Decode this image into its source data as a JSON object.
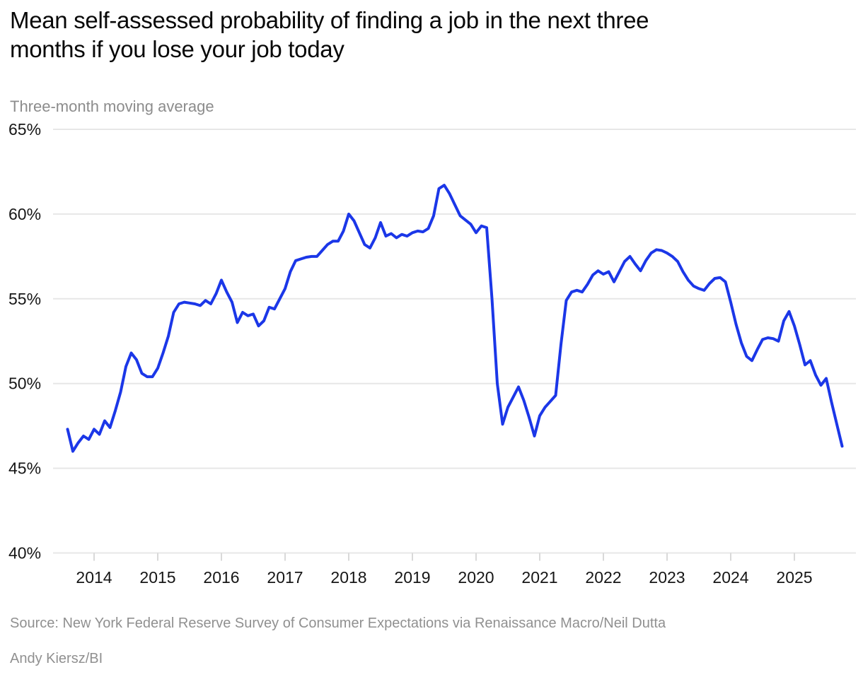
{
  "header": {
    "title_lines": [
      "Mean self-assessed probability of finding a job in the next three",
      "months if you lose your job today"
    ],
    "subtitle": "Three-month moving average"
  },
  "footer": {
    "source": "Source: New York Federal Reserve Survey of Consumer Expectations via Renaissance Macro/Neil Dutta",
    "byline": "Andy Kiersz/BI"
  },
  "colors": {
    "line": "#1b37e8",
    "gridline": "#e7e7e7",
    "axis_text": "#161616",
    "muted_text": "#909090"
  },
  "chart_data": {
    "type": "line",
    "title": "Mean self-assessed probability of finding a job in the next three months if you lose your job today",
    "subtitle": "Three-month moving average",
    "unit": "percent",
    "frequency": "monthly",
    "x_start": "2013-08",
    "x_end": "2025-10",
    "ylim": [
      40,
      65
    ],
    "ytick_labels": [
      "40%",
      "45%",
      "50%",
      "55%",
      "60%",
      "65%"
    ],
    "yticks": [
      40,
      45,
      50,
      55,
      60,
      65
    ],
    "xtick_years": [
      2014,
      2015,
      2016,
      2017,
      2018,
      2019,
      2020,
      2021,
      2022,
      2023,
      2024,
      2025
    ],
    "grid": "horizontal-only",
    "legend": "none",
    "series": [
      {
        "name": "Mean probability of finding a job (3-month moving average)",
        "values": [
          47.3,
          46.0,
          46.5,
          46.9,
          46.7,
          47.3,
          47.0,
          47.8,
          47.4,
          48.4,
          49.5,
          51.0,
          51.8,
          51.4,
          50.6,
          50.4,
          50.4,
          50.9,
          51.8,
          52.8,
          54.2,
          54.7,
          54.8,
          54.75,
          54.7,
          54.6,
          54.9,
          54.7,
          55.3,
          56.1,
          55.4,
          54.8,
          53.6,
          54.2,
          54.0,
          54.1,
          53.4,
          53.7,
          54.5,
          54.4,
          55.0,
          55.6,
          56.6,
          57.25,
          57.35,
          57.45,
          57.5,
          57.5,
          57.85,
          58.2,
          58.4,
          58.4,
          59.0,
          60.0,
          59.6,
          58.9,
          58.2,
          58.0,
          58.6,
          59.5,
          58.7,
          58.85,
          58.6,
          58.8,
          58.7,
          58.9,
          59.0,
          58.95,
          59.15,
          59.9,
          61.5,
          61.7,
          61.2,
          60.55,
          59.9,
          59.65,
          59.4,
          58.9,
          59.3,
          59.2,
          55.0,
          50.0,
          47.6,
          48.6,
          49.2,
          49.8,
          49.0,
          48.0,
          46.9,
          48.1,
          48.6,
          48.95,
          49.3,
          52.3,
          54.9,
          55.4,
          55.5,
          55.4,
          55.85,
          56.4,
          56.65,
          56.45,
          56.6,
          56.0,
          56.6,
          57.2,
          57.5,
          57.05,
          56.65,
          57.25,
          57.7,
          57.9,
          57.85,
          57.7,
          57.5,
          57.2,
          56.6,
          56.1,
          55.75,
          55.6,
          55.5,
          55.9,
          56.2,
          56.25,
          56.0,
          54.8,
          53.5,
          52.4,
          51.6,
          51.35,
          52.0,
          52.6,
          52.7,
          52.65,
          52.5,
          53.7,
          54.25,
          53.4,
          52.3,
          51.1,
          51.35,
          50.5,
          49.9,
          50.3,
          48.9,
          47.6,
          46.3
        ]
      }
    ]
  }
}
